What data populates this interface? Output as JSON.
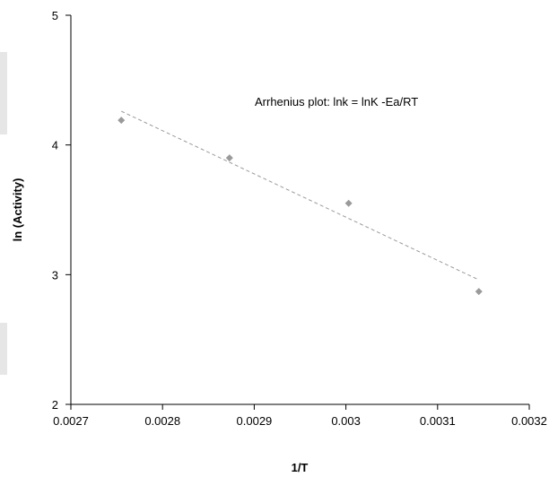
{
  "chart_data": {
    "type": "scatter",
    "title": "",
    "xlabel": "1/T",
    "ylabel": "ln (Activity)",
    "xlim": [
      0.0027,
      0.0032
    ],
    "ylim": [
      2,
      5
    ],
    "x_ticks": [
      "0.0027",
      "0.0028",
      "0.0029",
      "0.003",
      "0.0031",
      "0.0032"
    ],
    "y_ticks": [
      "2",
      "3",
      "4",
      "5"
    ],
    "series": [
      {
        "marker": "diamond",
        "color": "#9a9a9a",
        "x": [
          0.002755,
          0.002873,
          0.003003,
          0.003145
        ],
        "y": [
          4.19,
          3.9,
          3.55,
          2.87
        ]
      }
    ],
    "trendline": {
      "style": "dashed",
      "color": "#9a9a9a",
      "x": [
        0.002755,
        0.003145
      ],
      "y": [
        4.26,
        2.96
      ]
    },
    "annotation": "Arrhenius plot: lnk = lnK -Ea/RT",
    "grid": false,
    "legend": "none"
  }
}
